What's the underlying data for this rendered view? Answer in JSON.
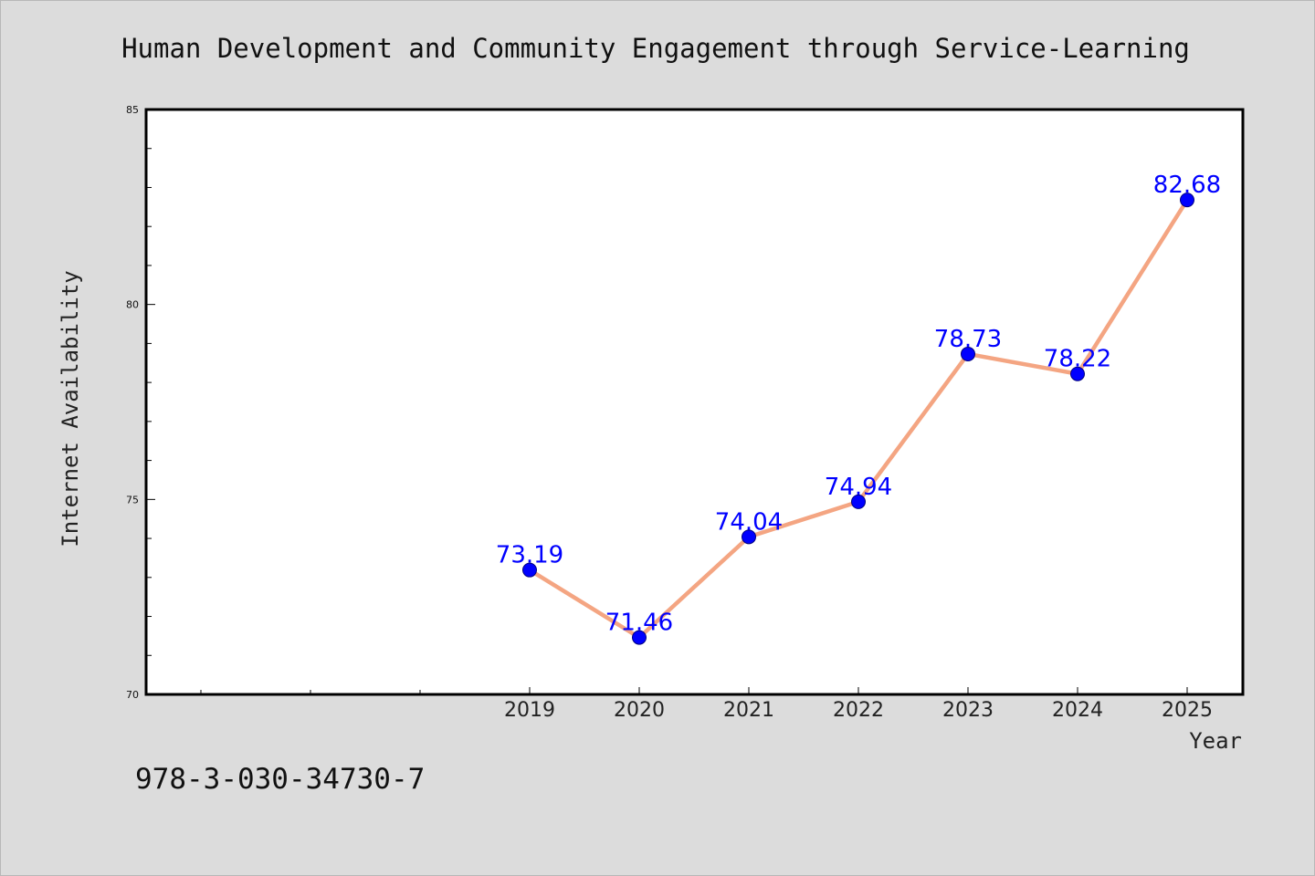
{
  "chart_data": {
    "type": "line",
    "title": "Human Development and Community Engagement through Service-Learning",
    "xlabel": "Year",
    "ylabel": "Internet Availability",
    "categories": [
      "2019",
      "2020",
      "2021",
      "2022",
      "2023",
      "2024",
      "2025"
    ],
    "series": [
      {
        "values": [
          73.19,
          71.46,
          74.04,
          74.94,
          78.73,
          78.22,
          82.68
        ],
        "labels": [
          "73.19",
          "71.46",
          "74.04",
          "74.94",
          "78.73",
          "78.22",
          "82.68"
        ],
        "line_color": "#f4a582",
        "marker_color": "#0000ff"
      }
    ],
    "ylim": [
      70,
      85
    ],
    "yticks": [
      "70",
      "75",
      "80",
      "85"
    ],
    "grid": false,
    "legend": "none",
    "footer": "978-3-030-34730-7"
  }
}
